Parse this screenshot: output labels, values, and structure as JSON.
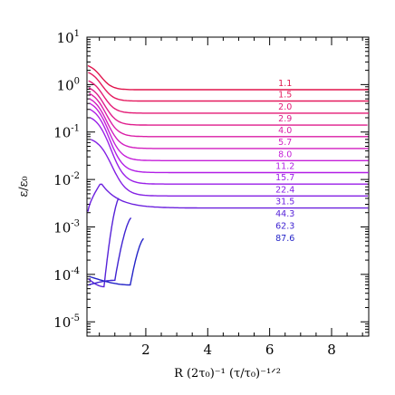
{
  "chart_data": {
    "type": "line",
    "xlabel": "R (2τ₀)⁻¹ (τ/τ₀)⁻¹ᐟ²",
    "ylabel": "ε/ε₀",
    "x_axis": {
      "range": [
        0.1,
        9.2
      ],
      "ticks": [
        2,
        4,
        6,
        8
      ],
      "tick_labels": [
        "2",
        "4",
        "6",
        "8"
      ]
    },
    "y_axis": {
      "scale": "log",
      "range": [
        5e-06,
        10
      ],
      "ticks": [
        1e-05,
        0.0001,
        0.001,
        0.01,
        0.1,
        1,
        10
      ],
      "tick_labels": [
        {
          "base": "10",
          "exp": "-5"
        },
        {
          "base": "10",
          "exp": "-4"
        },
        {
          "base": "10",
          "exp": "-3"
        },
        {
          "base": "10",
          "exp": "-2"
        },
        {
          "base": "10",
          "exp": "-1"
        },
        {
          "base": "10",
          "exp": "0"
        },
        {
          "base": "10",
          "exp": "1"
        }
      ]
    },
    "grid": false,
    "legend": "none",
    "series": [
      {
        "name": "1.1",
        "color": "#e0144c",
        "y_start": 2.5,
        "y_end": 0.78
      },
      {
        "name": "1.5",
        "color": "#e41a5e",
        "y_start": 1.8,
        "y_end": 0.45
      },
      {
        "name": "2.0",
        "color": "#e31a75",
        "y_start": 1.2,
        "y_end": 0.25
      },
      {
        "name": "2.9",
        "color": "#df1c8c",
        "y_start": 0.85,
        "y_end": 0.14
      },
      {
        "name": "4.0",
        "color": "#da1ea6",
        "y_start": 0.65,
        "y_end": 0.08
      },
      {
        "name": "5.7",
        "color": "#d21fc0",
        "y_start": 0.5,
        "y_end": 0.045
      },
      {
        "name": "8.0",
        "color": "#c51fd9",
        "y_start": 0.4,
        "y_end": 0.025
      },
      {
        "name": "11.2",
        "color": "#b11fe6",
        "y_start": 0.3,
        "y_end": 0.014
      },
      {
        "name": "15.7",
        "color": "#9a1fe8",
        "y_start": 0.2,
        "y_end": 0.008
      },
      {
        "name": "22.4",
        "color": "#8420e4",
        "y_start": 0.07,
        "y_end": 0.0045
      },
      {
        "name": "31.5",
        "color": "#6c21de",
        "y_start": 0.0021,
        "y_end": 0.0025
      },
      {
        "name": "44.3",
        "color": "#5622d8",
        "y_start": 8e-05,
        "y_end": 0.00138
      },
      {
        "name": "62.3",
        "color": "#3f23d1",
        "y_start": 6e-05,
        "y_end": 0.00077
      },
      {
        "name": "87.6",
        "color": "#2424c8",
        "y_start": 9e-05,
        "y_end": 0.00042
      }
    ]
  }
}
